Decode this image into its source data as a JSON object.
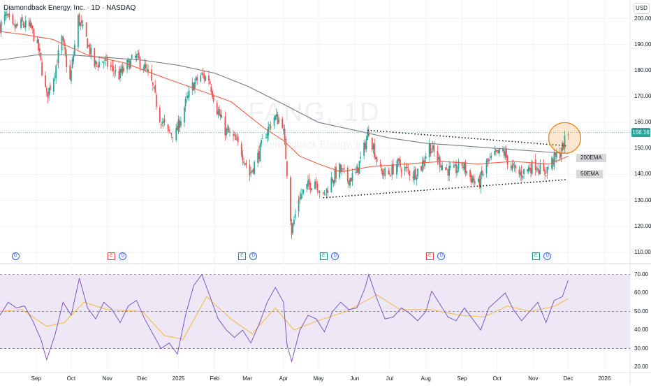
{
  "header": {
    "symbol_title": "Diamondback Energy, Inc. · 1D · NASDAQ",
    "currency": "USD"
  },
  "watermark": {
    "symbol": "FANG, 1D",
    "name": "Diamondback Energy, Inc."
  },
  "last_price_tag": "156.16",
  "annotations": {
    "ema200": "200EMA",
    "ema50": "50EMA"
  },
  "events": [
    {
      "type": "dividend",
      "glyph": "D",
      "date": "2024-08-14"
    },
    {
      "type": "earnings",
      "glyph": "E",
      "date": "2024-11-04"
    },
    {
      "type": "dividend",
      "glyph": "D",
      "date": "2024-11-14"
    },
    {
      "type": "split",
      "glyph": "E",
      "date": "2025-02-24"
    },
    {
      "type": "dividend",
      "glyph": "D",
      "date": "2025-03-06"
    },
    {
      "type": "split",
      "glyph": "E",
      "date": "2025-05-05"
    },
    {
      "type": "dividend",
      "glyph": "D",
      "date": "2025-05-15"
    },
    {
      "type": "earnings",
      "glyph": "E",
      "date": "2025-08-04"
    },
    {
      "type": "dividend",
      "glyph": "D",
      "date": "2025-08-14"
    },
    {
      "type": "split",
      "glyph": "E",
      "date": "2025-11-03"
    },
    {
      "type": "dividend",
      "glyph": "D",
      "date": "2025-11-13"
    }
  ],
  "colors": {
    "up": "#26a69a",
    "down": "#ef5350",
    "ema50": "#f0614a",
    "ema200": "#787b86",
    "rsi": "#7e57c2",
    "rsi_ma": "#f5b946",
    "rsi_band": "#ede7f6",
    "highlight": "#f57c00",
    "last_price": "#26a69a"
  },
  "chart_data": [
    {
      "type": "candlestick",
      "title": "Diamondback Energy, Inc. · 1D · NASDAQ",
      "y_axis_ticks": [
        "110.00",
        "120.00",
        "130.00",
        "140.00",
        "150.00",
        "160.00",
        "170.00",
        "180.00",
        "190.00",
        "200.00"
      ],
      "ylim": [
        107,
        205
      ],
      "x_axis_ticks": [
        "Sep",
        "Oct",
        "Nov",
        "Dec",
        "2025",
        "Feb",
        "Mar",
        "Apr",
        "May",
        "Jun",
        "Jul",
        "Aug",
        "Sep",
        "Oct",
        "Nov",
        "Dec",
        "2026"
      ],
      "x_tick_dates": [
        "2024-09-01",
        "2024-10-01",
        "2024-11-01",
        "2024-12-01",
        "2025-01-01",
        "2025-02-01",
        "2025-03-01",
        "2025-04-01",
        "2025-05-01",
        "2025-06-01",
        "2025-07-01",
        "2025-08-01",
        "2025-09-01",
        "2025-10-01",
        "2025-11-01",
        "2025-12-01",
        "2026-01-01"
      ],
      "xlim": [
        "2024-08-01",
        "2026-01-23"
      ],
      "last_price": 156.16,
      "close_path": [
        [
          "2024-08-01",
          197
        ],
        [
          "2024-08-06",
          201
        ],
        [
          "2024-08-12",
          196
        ],
        [
          "2024-08-20",
          198
        ],
        [
          "2024-08-28",
          196
        ],
        [
          "2024-09-03",
          188
        ],
        [
          "2024-09-10",
          170
        ],
        [
          "2024-09-16",
          178
        ],
        [
          "2024-09-23",
          192
        ],
        [
          "2024-09-30",
          176
        ],
        [
          "2024-10-07",
          200
        ],
        [
          "2024-10-14",
          192
        ],
        [
          "2024-10-21",
          182
        ],
        [
          "2024-10-28",
          184
        ],
        [
          "2024-11-04",
          181
        ],
        [
          "2024-11-11",
          178
        ],
        [
          "2024-11-18",
          182
        ],
        [
          "2024-11-25",
          185
        ],
        [
          "2024-12-02",
          182
        ],
        [
          "2024-12-09",
          175
        ],
        [
          "2024-12-16",
          162
        ],
        [
          "2024-12-23",
          156
        ],
        [
          "2024-12-30",
          156
        ],
        [
          "2025-01-06",
          166
        ],
        [
          "2025-01-13",
          174
        ],
        [
          "2025-01-20",
          178
        ],
        [
          "2025-01-27",
          177
        ],
        [
          "2025-02-03",
          165
        ],
        [
          "2025-02-10",
          157
        ],
        [
          "2025-02-17",
          154
        ],
        [
          "2025-02-24",
          149
        ],
        [
          "2025-03-03",
          140
        ],
        [
          "2025-03-10",
          147
        ],
        [
          "2025-03-17",
          156
        ],
        [
          "2025-03-24",
          162
        ],
        [
          "2025-03-31",
          160
        ],
        [
          "2025-04-03",
          147
        ],
        [
          "2025-04-08",
          118
        ],
        [
          "2025-04-14",
          131
        ],
        [
          "2025-04-21",
          135
        ],
        [
          "2025-04-28",
          138
        ],
        [
          "2025-05-05",
          131
        ],
        [
          "2025-05-12",
          138
        ],
        [
          "2025-05-19",
          142
        ],
        [
          "2025-05-26",
          138
        ],
        [
          "2025-06-02",
          140
        ],
        [
          "2025-06-09",
          150
        ],
        [
          "2025-06-13",
          157
        ],
        [
          "2025-06-16",
          152
        ],
        [
          "2025-06-23",
          141
        ],
        [
          "2025-06-30",
          140
        ],
        [
          "2025-07-07",
          144
        ],
        [
          "2025-07-14",
          142
        ],
        [
          "2025-07-21",
          140
        ],
        [
          "2025-07-28",
          143
        ],
        [
          "2025-08-04",
          151
        ],
        [
          "2025-08-11",
          146
        ],
        [
          "2025-08-18",
          142
        ],
        [
          "2025-08-25",
          141
        ],
        [
          "2025-09-01",
          144
        ],
        [
          "2025-09-08",
          139
        ],
        [
          "2025-09-15",
          136
        ],
        [
          "2025-09-22",
          144
        ],
        [
          "2025-09-29",
          147
        ],
        [
          "2025-10-06",
          149
        ],
        [
          "2025-10-13",
          143
        ],
        [
          "2025-10-20",
          140
        ],
        [
          "2025-10-27",
          142
        ],
        [
          "2025-11-03",
          144
        ],
        [
          "2025-11-10",
          140
        ],
        [
          "2025-11-17",
          145
        ],
        [
          "2025-11-24",
          148
        ],
        [
          "2025-12-01",
          156
        ]
      ],
      "ema50_path": [
        [
          "2024-08-01",
          195
        ],
        [
          "2024-08-20",
          194
        ],
        [
          "2024-09-15",
          192
        ],
        [
          "2024-10-15",
          186
        ],
        [
          "2024-11-15",
          183
        ],
        [
          "2024-12-15",
          178
        ],
        [
          "2025-01-15",
          173
        ],
        [
          "2025-02-15",
          168
        ],
        [
          "2025-03-15",
          158
        ],
        [
          "2025-04-01",
          153
        ],
        [
          "2025-04-15",
          147
        ],
        [
          "2025-05-01",
          144
        ],
        [
          "2025-05-20",
          141
        ],
        [
          "2025-06-15",
          143
        ],
        [
          "2025-07-15",
          144
        ],
        [
          "2025-08-15",
          145
        ],
        [
          "2025-09-15",
          144
        ],
        [
          "2025-10-15",
          145
        ],
        [
          "2025-11-15",
          144
        ],
        [
          "2025-12-01",
          147
        ]
      ],
      "ema200_path": [
        [
          "2024-08-01",
          184
        ],
        [
          "2024-09-01",
          186
        ],
        [
          "2024-10-01",
          186
        ],
        [
          "2024-11-01",
          185
        ],
        [
          "2024-12-01",
          184
        ],
        [
          "2025-01-01",
          182
        ],
        [
          "2025-02-01",
          179
        ],
        [
          "2025-03-01",
          174
        ],
        [
          "2025-04-01",
          167
        ],
        [
          "2025-05-01",
          160
        ],
        [
          "2025-06-01",
          157
        ],
        [
          "2025-07-01",
          154
        ],
        [
          "2025-08-01",
          152
        ],
        [
          "2025-09-01",
          151
        ],
        [
          "2025-10-01",
          150
        ],
        [
          "2025-11-01",
          149
        ],
        [
          "2025-12-01",
          148
        ]
      ],
      "trendlines": [
        {
          "style": "dotted",
          "from": [
            "2025-06-12",
            157
          ],
          "to": [
            "2025-11-30",
            151
          ]
        },
        {
          "style": "dotted",
          "from": [
            "2025-05-05",
            131
          ],
          "to": [
            "2025-11-30",
            138
          ]
        }
      ],
      "highlight_circle": {
        "center": [
          "2025-11-28",
          154
        ],
        "note": "breakout"
      }
    },
    {
      "type": "line",
      "title": "RSI",
      "y_axis_ticks": [
        "20.00",
        "30.00",
        "40.00",
        "50.00",
        "60.00",
        "70.00"
      ],
      "ylim": [
        17,
        74
      ],
      "bands": [
        30,
        50,
        70
      ],
      "series": [
        {
          "key": "rsi",
          "points": [
            [
              "2024-08-01",
              48
            ],
            [
              "2024-08-08",
              55
            ],
            [
              "2024-08-15",
              52
            ],
            [
              "2024-08-22",
              53
            ],
            [
              "2024-08-29",
              45
            ],
            [
              "2024-09-05",
              35
            ],
            [
              "2024-09-10",
              24
            ],
            [
              "2024-09-17",
              37
            ],
            [
              "2024-09-24",
              55
            ],
            [
              "2024-10-01",
              48
            ],
            [
              "2024-10-08",
              68
            ],
            [
              "2024-10-15",
              52
            ],
            [
              "2024-10-22",
              46
            ],
            [
              "2024-10-29",
              55
            ],
            [
              "2024-11-05",
              51
            ],
            [
              "2024-11-12",
              44
            ],
            [
              "2024-11-19",
              53
            ],
            [
              "2024-11-26",
              56
            ],
            [
              "2024-12-03",
              46
            ],
            [
              "2024-12-10",
              38
            ],
            [
              "2024-12-17",
              30
            ],
            [
              "2024-12-24",
              33
            ],
            [
              "2024-12-31",
              27
            ],
            [
              "2025-01-07",
              48
            ],
            [
              "2025-01-14",
              64
            ],
            [
              "2025-01-21",
              70
            ],
            [
              "2025-01-28",
              58
            ],
            [
              "2025-02-04",
              46
            ],
            [
              "2025-02-11",
              40
            ],
            [
              "2025-02-18",
              36
            ],
            [
              "2025-02-25",
              40
            ],
            [
              "2025-03-04",
              33
            ],
            [
              "2025-03-11",
              43
            ],
            [
              "2025-03-18",
              55
            ],
            [
              "2025-03-25",
              63
            ],
            [
              "2025-04-01",
              55
            ],
            [
              "2025-04-04",
              32
            ],
            [
              "2025-04-08",
              23
            ],
            [
              "2025-04-15",
              40
            ],
            [
              "2025-04-22",
              48
            ],
            [
              "2025-04-29",
              46
            ],
            [
              "2025-05-06",
              39
            ],
            [
              "2025-05-13",
              50
            ],
            [
              "2025-05-20",
              55
            ],
            [
              "2025-05-27",
              51
            ],
            [
              "2025-06-03",
              52
            ],
            [
              "2025-06-10",
              63
            ],
            [
              "2025-06-13",
              70
            ],
            [
              "2025-06-20",
              57
            ],
            [
              "2025-06-27",
              46
            ],
            [
              "2025-07-04",
              47
            ],
            [
              "2025-07-11",
              52
            ],
            [
              "2025-07-18",
              49
            ],
            [
              "2025-07-25",
              45
            ],
            [
              "2025-08-01",
              50
            ],
            [
              "2025-08-06",
              61
            ],
            [
              "2025-08-13",
              54
            ],
            [
              "2025-08-20",
              47
            ],
            [
              "2025-08-27",
              45
            ],
            [
              "2025-09-03",
              52
            ],
            [
              "2025-09-10",
              46
            ],
            [
              "2025-09-17",
              40
            ],
            [
              "2025-09-24",
              52
            ],
            [
              "2025-10-01",
              56
            ],
            [
              "2025-10-08",
              60
            ],
            [
              "2025-10-15",
              51
            ],
            [
              "2025-10-22",
              45
            ],
            [
              "2025-10-29",
              50
            ],
            [
              "2025-11-05",
              55
            ],
            [
              "2025-11-12",
              44
            ],
            [
              "2025-11-19",
              56
            ],
            [
              "2025-11-26",
              58
            ],
            [
              "2025-12-01",
              67
            ]
          ]
        },
        {
          "key": "rsi_ma",
          "points": [
            [
              "2024-08-01",
              50
            ],
            [
              "2024-08-20",
              51
            ],
            [
              "2024-09-10",
              42
            ],
            [
              "2024-09-25",
              44
            ],
            [
              "2024-10-12",
              55
            ],
            [
              "2024-11-01",
              51
            ],
            [
              "2024-12-01",
              50
            ],
            [
              "2024-12-20",
              37
            ],
            [
              "2025-01-05",
              35
            ],
            [
              "2025-01-25",
              58
            ],
            [
              "2025-02-15",
              46
            ],
            [
              "2025-03-05",
              38
            ],
            [
              "2025-03-25",
              52
            ],
            [
              "2025-04-10",
              40
            ],
            [
              "2025-04-30",
              45
            ],
            [
              "2025-05-25",
              50
            ],
            [
              "2025-06-20",
              59
            ],
            [
              "2025-07-10",
              51
            ],
            [
              "2025-08-05",
              51
            ],
            [
              "2025-08-30",
              48
            ],
            [
              "2025-09-20",
              47
            ],
            [
              "2025-10-10",
              53
            ],
            [
              "2025-10-30",
              50
            ],
            [
              "2025-11-20",
              53
            ],
            [
              "2025-12-01",
              57
            ]
          ]
        }
      ]
    }
  ]
}
